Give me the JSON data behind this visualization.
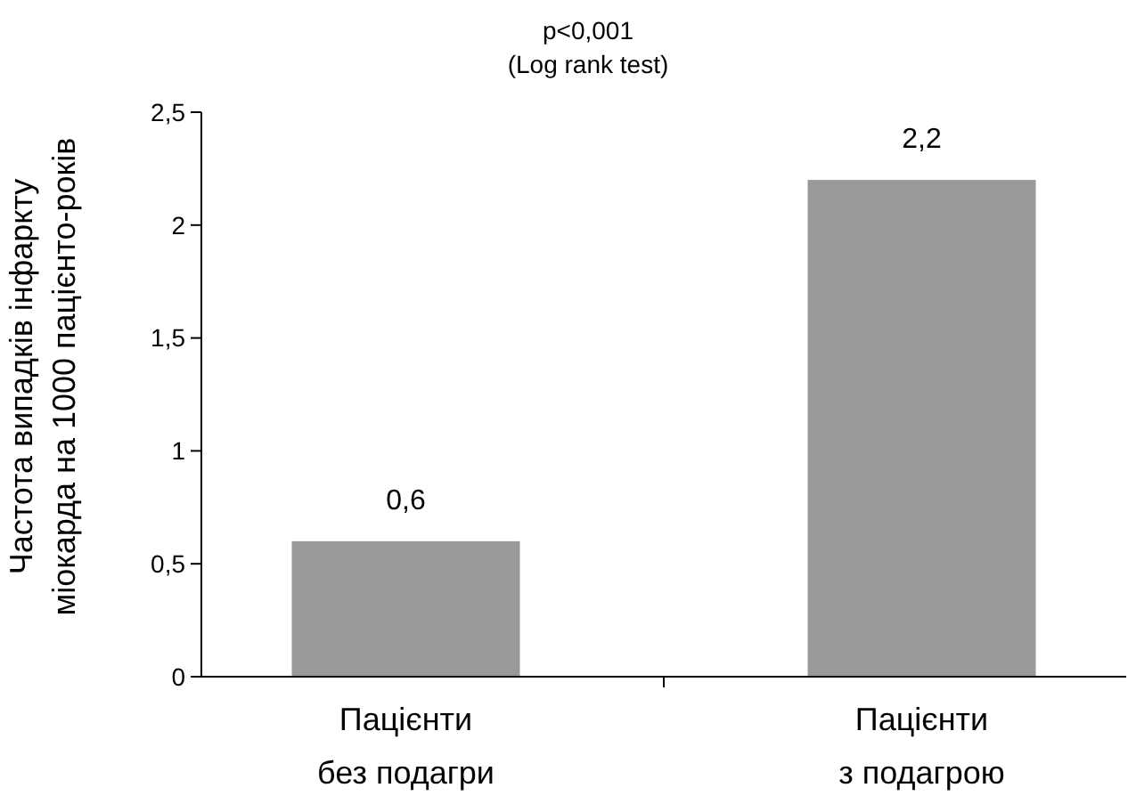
{
  "chart_data": {
    "type": "bar",
    "categories": [
      "Пацієнти\nбез подагри",
      "Пацієнти\nз подагрою"
    ],
    "values": [
      0.6,
      2.2
    ],
    "color": "#999999",
    "value_labels": [
      "0,6",
      "2,2"
    ],
    "ylabel": "Частота випадків інфаркту\nміокарда на 1000 пацієнто-років",
    "ylim": [
      0,
      2.5
    ],
    "yticks": [
      0,
      {
        "value": 0.5,
        "label": "0,5"
      },
      1,
      {
        "value": 1.5,
        "label": "1,5"
      },
      2,
      {
        "value": 2.5,
        "label": "2,5"
      }
    ],
    "annotations": [
      "p<0,001\n(Log rank test)"
    ],
    "grid": false
  }
}
